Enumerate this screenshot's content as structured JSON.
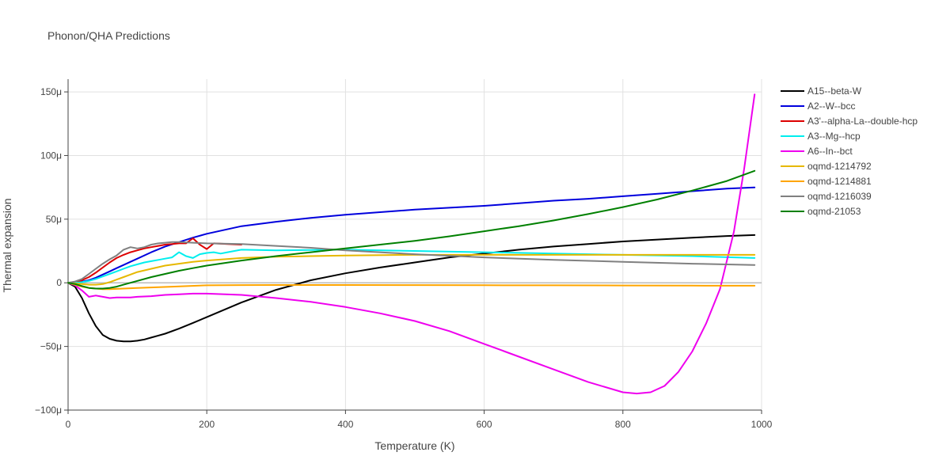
{
  "chart_data": {
    "type": "line",
    "title": "Phonon/QHA Predictions",
    "xlabel": "Temperature (K)",
    "ylabel": "Thermal expansion",
    "xlim": [
      0,
      1000
    ],
    "ylim": [
      -100,
      160
    ],
    "y_unit_suffix": "μ",
    "x_ticks": [
      0,
      200,
      400,
      600,
      800,
      1000
    ],
    "x_tick_labels": [
      "0",
      "200",
      "400",
      "600",
      "800",
      "1000"
    ],
    "y_ticks": [
      -100,
      -50,
      0,
      50,
      100,
      150
    ],
    "y_tick_labels": [
      "−100μ",
      "−50μ",
      "0",
      "50μ",
      "100μ",
      "150μ"
    ],
    "grid": true,
    "legend_position": "right",
    "series": [
      {
        "name": "A15--beta-W",
        "color": "#000000",
        "x": [
          0,
          10,
          20,
          30,
          40,
          50,
          60,
          70,
          80,
          90,
          100,
          110,
          120,
          130,
          140,
          160,
          180,
          200,
          250,
          300,
          350,
          400,
          450,
          500,
          550,
          600,
          650,
          700,
          750,
          800,
          850,
          900,
          950,
          990
        ],
        "y": [
          0,
          -3,
          -12,
          -24,
          -34,
          -41,
          -44,
          -45.5,
          -46,
          -46,
          -45.5,
          -44.5,
          -43,
          -41.5,
          -40,
          -36,
          -31.5,
          -27,
          -15.5,
          -5.5,
          2,
          7.5,
          12,
          16,
          20,
          23,
          26,
          28.5,
          30.5,
          32.5,
          34,
          35.5,
          36.8,
          37.5
        ]
      },
      {
        "name": "A2--W--bcc",
        "color": "#0000dd",
        "x": [
          0,
          10,
          20,
          30,
          40,
          50,
          60,
          70,
          80,
          90,
          100,
          120,
          140,
          160,
          180,
          200,
          250,
          300,
          350,
          400,
          450,
          500,
          550,
          600,
          650,
          700,
          750,
          800,
          850,
          900,
          950,
          990
        ],
        "y": [
          0,
          0.2,
          0.8,
          2,
          4,
          6.5,
          9,
          11.5,
          14,
          16.5,
          19,
          24,
          28.5,
          32,
          35.5,
          38.5,
          44.5,
          48,
          51,
          53.5,
          55.5,
          57.5,
          59,
          60.5,
          62.5,
          64.5,
          66,
          68,
          70,
          72,
          74,
          75
        ]
      },
      {
        "name": "A3'--alpha-La--double-hcp",
        "color": "#dd0000",
        "x": [
          0,
          10,
          20,
          30,
          40,
          50,
          60,
          70,
          80,
          90,
          100,
          110,
          120,
          130,
          140,
          150,
          160,
          170,
          180,
          190,
          200,
          210,
          230,
          250
        ],
        "y": [
          0,
          0.5,
          2,
          4.5,
          8,
          12,
          16,
          19.5,
          22,
          24,
          25.5,
          27,
          28,
          29,
          30,
          30.5,
          31,
          31,
          35,
          30,
          26.5,
          31,
          30.5,
          30
        ]
      },
      {
        "name": "A3--Mg--hcp",
        "color": "#00eeee",
        "x": [
          0,
          10,
          20,
          30,
          40,
          50,
          60,
          70,
          80,
          90,
          100,
          110,
          120,
          130,
          140,
          150,
          160,
          170,
          180,
          190,
          200,
          210,
          220,
          230,
          240,
          250,
          300,
          400,
          500,
          600,
          700,
          800,
          900,
          990
        ],
        "y": [
          0,
          0,
          0.5,
          1.5,
          3,
          5,
          7,
          9,
          11,
          13,
          14.5,
          16,
          17,
          18,
          19,
          20,
          24,
          21,
          19.5,
          22.5,
          23.5,
          24,
          23,
          24,
          25,
          26,
          25.5,
          26,
          25,
          24,
          23,
          22,
          21,
          19.5
        ]
      },
      {
        "name": "A6--In--bct",
        "color": "#ee00ee",
        "x": [
          0,
          10,
          20,
          30,
          40,
          50,
          60,
          70,
          80,
          90,
          100,
          120,
          140,
          160,
          180,
          200,
          250,
          300,
          350,
          400,
          450,
          500,
          550,
          600,
          650,
          700,
          750,
          800,
          820,
          840,
          860,
          880,
          900,
          920,
          940,
          960,
          975,
          990
        ],
        "y": [
          0,
          -2,
          -6,
          -11,
          -10,
          -11,
          -12,
          -11.5,
          -11.5,
          -11.5,
          -11,
          -10.5,
          -9.5,
          -9,
          -8.5,
          -8.5,
          -9.5,
          -12,
          -15,
          -19,
          -24,
          -30,
          -38,
          -48,
          -58,
          -68,
          -78,
          -86,
          -87,
          -86,
          -81,
          -70,
          -54,
          -32,
          -5,
          40,
          90,
          148
        ]
      },
      {
        "name": "oqmd-1214792",
        "color": "#e6b800",
        "x": [
          0,
          10,
          20,
          30,
          40,
          50,
          60,
          70,
          80,
          90,
          100,
          120,
          140,
          160,
          180,
          200,
          250,
          300,
          350,
          400,
          500,
          600,
          700,
          800,
          900,
          990
        ],
        "y": [
          0,
          -0.5,
          -1,
          -1.5,
          -1.5,
          -1,
          0.5,
          2.5,
          4.5,
          6.5,
          8.5,
          11,
          13.5,
          15,
          16.5,
          17.5,
          19.5,
          20.5,
          21,
          21.5,
          22,
          22,
          22,
          22,
          22,
          22
        ]
      },
      {
        "name": "oqmd-1214881",
        "color": "#ffa500",
        "x": [
          0,
          10,
          20,
          30,
          40,
          50,
          60,
          80,
          100,
          150,
          200,
          250,
          300,
          400,
          500,
          600,
          700,
          800,
          900,
          990
        ],
        "y": [
          0,
          -1.5,
          -3,
          -4,
          -4.5,
          -5,
          -5,
          -4.5,
          -4,
          -3,
          -2,
          -1.8,
          -1.7,
          -1.7,
          -1.8,
          -1.9,
          -2,
          -2.1,
          -2.2,
          -2.3
        ]
      },
      {
        "name": "oqmd-1216039",
        "color": "#808080",
        "x": [
          0,
          10,
          20,
          30,
          40,
          50,
          60,
          70,
          80,
          90,
          100,
          110,
          120,
          130,
          140,
          150,
          160,
          180,
          200,
          250,
          300,
          350,
          400,
          500,
          600,
          700,
          800,
          900,
          990
        ],
        "y": [
          0,
          1,
          3,
          7,
          11,
          15,
          18.5,
          21.5,
          26,
          28,
          27,
          28,
          30,
          31,
          31.5,
          32,
          32,
          31.5,
          31,
          30.5,
          29,
          27.5,
          25.5,
          22.5,
          20,
          18,
          16.5,
          15,
          14
        ]
      },
      {
        "name": "oqmd-21053",
        "color": "#008000",
        "x": [
          0,
          10,
          20,
          30,
          40,
          50,
          60,
          70,
          80,
          90,
          100,
          120,
          140,
          160,
          180,
          200,
          250,
          300,
          350,
          400,
          450,
          500,
          550,
          600,
          650,
          700,
          750,
          800,
          850,
          900,
          950,
          990
        ],
        "y": [
          0,
          -1,
          -2.5,
          -4,
          -4.5,
          -4.5,
          -4,
          -3,
          -1.5,
          0,
          1.5,
          4.5,
          7,
          9.5,
          11.5,
          13.5,
          17.5,
          21,
          24,
          27,
          30,
          33,
          36.5,
          40.5,
          44.5,
          49,
          54,
          59.5,
          65.5,
          72.5,
          80,
          88
        ]
      }
    ]
  }
}
